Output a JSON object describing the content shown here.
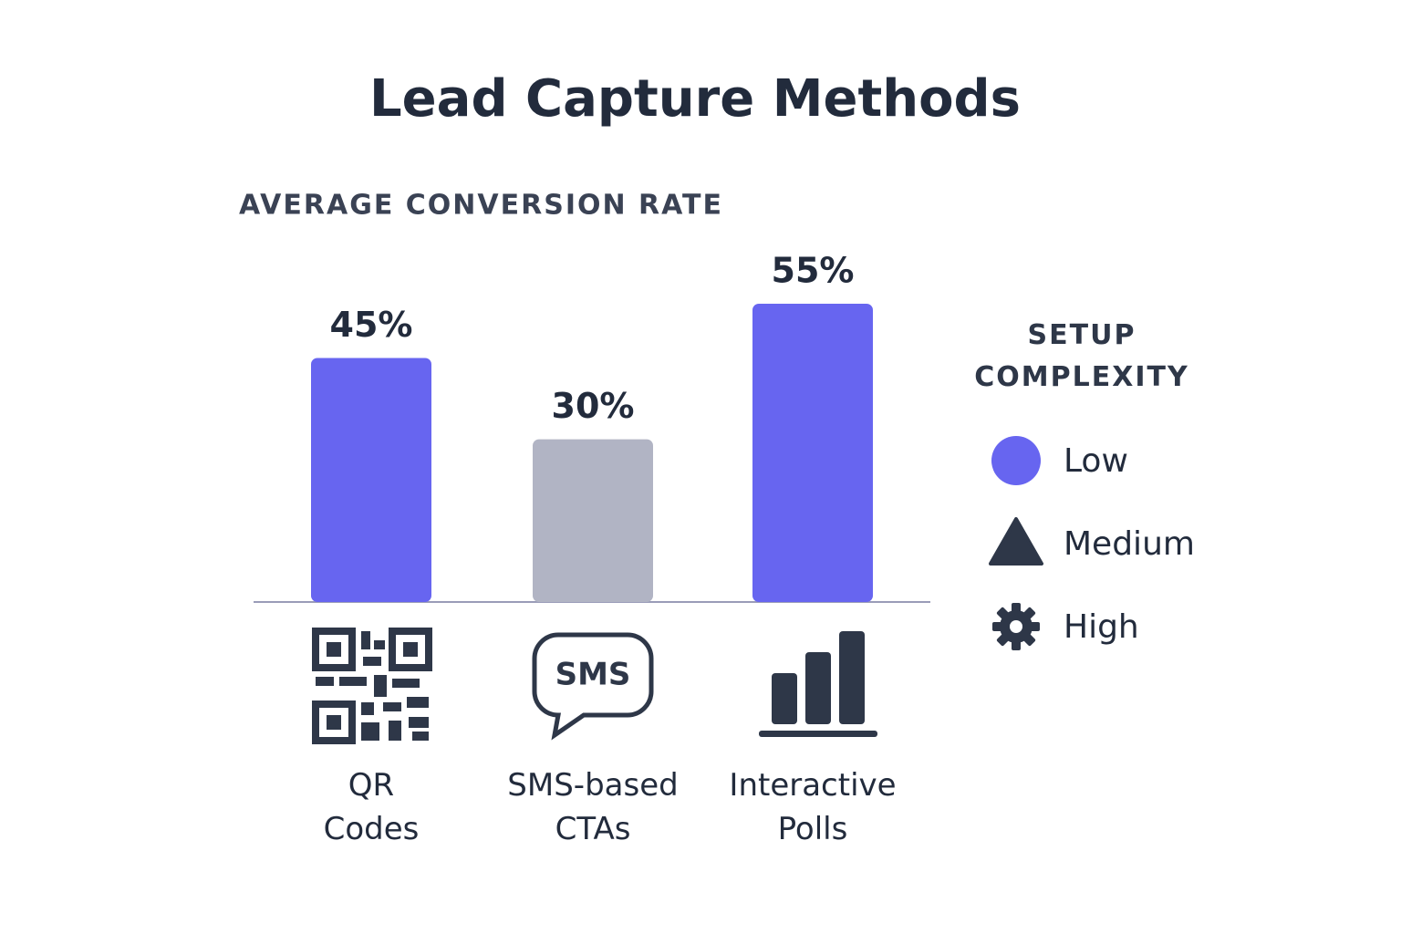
{
  "chart_data": {
    "type": "bar",
    "title": "Lead Capture Methods",
    "subtitle": "AVERAGE CONVERSION RATE",
    "categories": [
      "QR Codes",
      "SMS-based CTAs",
      "Interactive Polls"
    ],
    "values": [
      45,
      30,
      55
    ],
    "value_labels": [
      "45%",
      "30%",
      "55%"
    ],
    "colors": [
      "#6765f0",
      "#b1b4c4",
      "#6765f0"
    ],
    "icon_label": "SMS",
    "legend": {
      "title": "SETUP COMPLEXITY",
      "items": [
        {
          "label": "Low",
          "shape": "circle",
          "color": "#6765f0"
        },
        {
          "label": "Medium",
          "shape": "triangle",
          "color": "#2e3748"
        },
        {
          "label": "High",
          "shape": "gear",
          "color": "#2e3748"
        }
      ]
    }
  }
}
